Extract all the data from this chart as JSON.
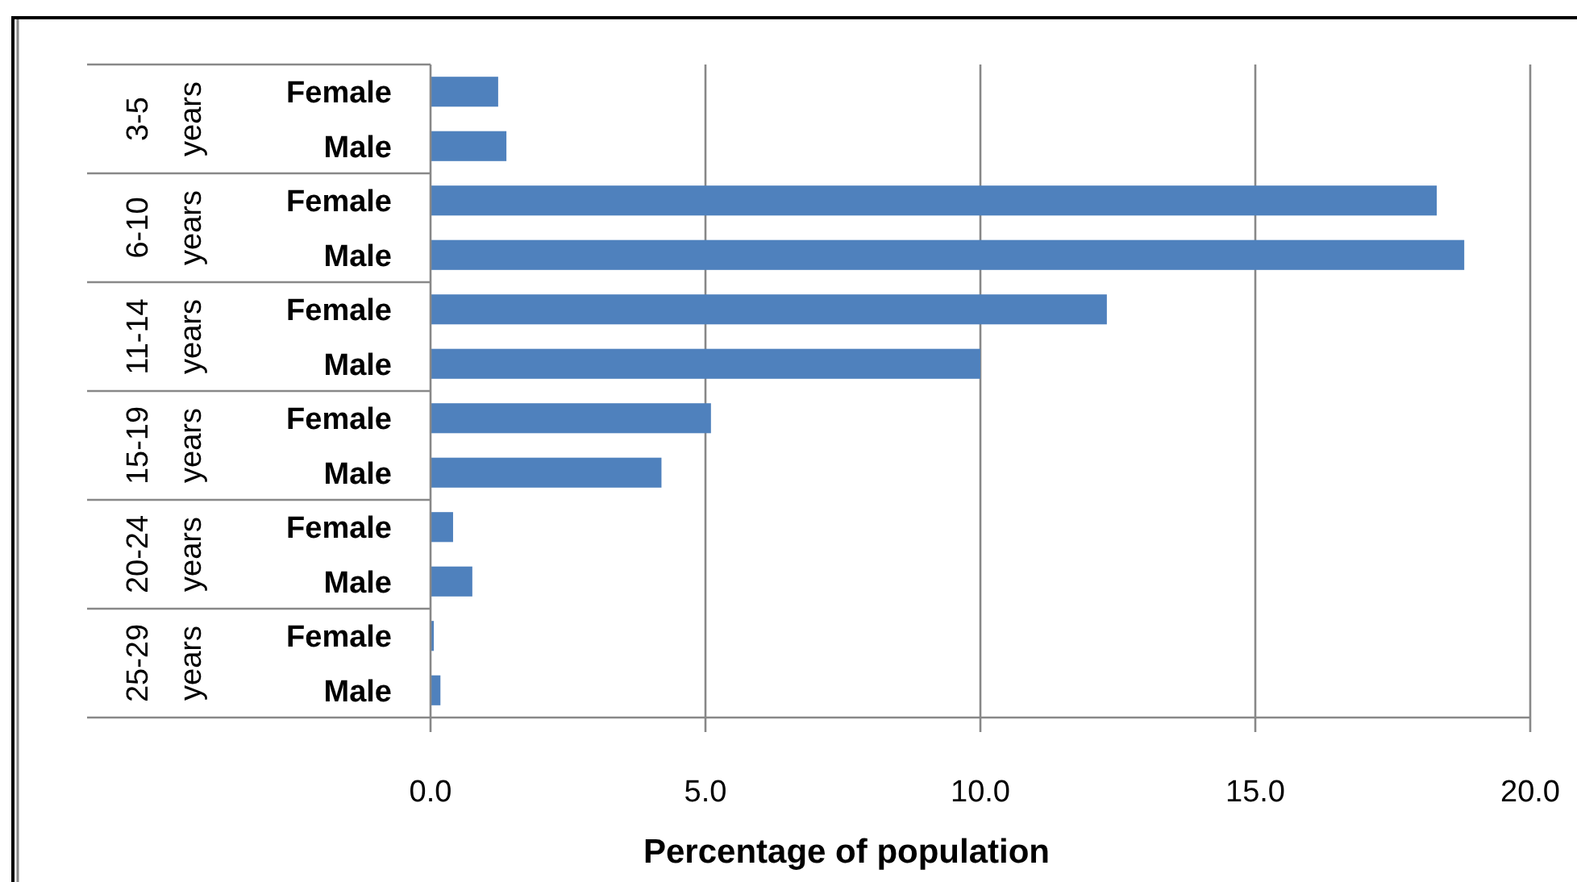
{
  "chart_data": {
    "type": "bar",
    "orientation": "horizontal",
    "xlabel": "Percentage of population",
    "categories": [
      "Female",
      "Male",
      "Female",
      "Male",
      "Female",
      "Male",
      "Female",
      "Male",
      "Female",
      "Male",
      "Female",
      "Male"
    ],
    "values": [
      1.23,
      1.38,
      18.3,
      18.8,
      12.3,
      10.0,
      5.1,
      4.2,
      0.41,
      0.76,
      0.06,
      0.18
    ],
    "color": "#4f81bd",
    "xlim": [
      0,
      20
    ],
    "xticks": [
      {
        "value": 0,
        "label": "0.0"
      },
      {
        "value": 5,
        "label": "5.0"
      },
      {
        "value": 10,
        "label": "10.0"
      },
      {
        "value": 15,
        "label": "15.0"
      },
      {
        "value": 20,
        "label": "20.0"
      }
    ],
    "grid": "x",
    "annotations": [
      "3-5 years",
      "6-10 years",
      "11-14 years",
      "15-19 years",
      "20-24 years",
      "25-29 years"
    ]
  }
}
